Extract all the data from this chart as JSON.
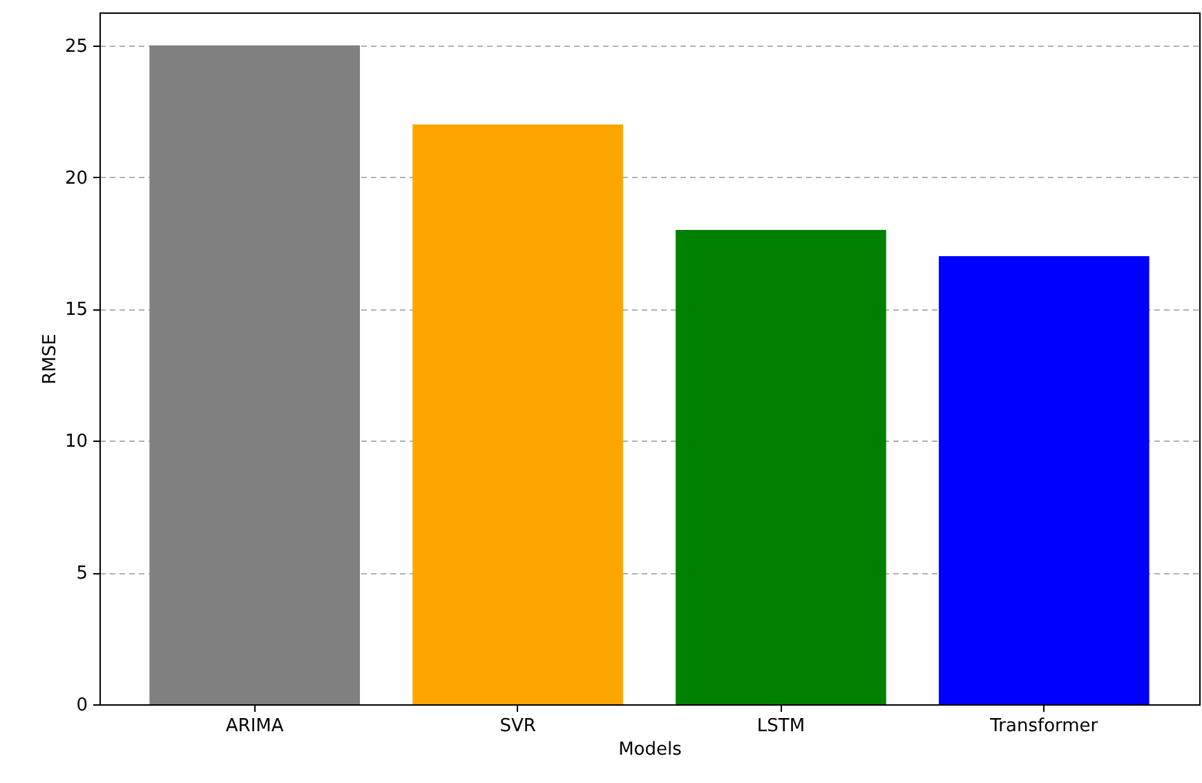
{
  "chart_data": {
    "type": "bar",
    "xlabel": "Models",
    "ylabel": "RMSE",
    "categories": [
      "ARIMA",
      "SVR",
      "LSTM",
      "Transformer"
    ],
    "values": [
      25,
      22,
      18,
      17
    ],
    "colors": [
      "#808080",
      "#ffa500",
      "#008000",
      "#0000ff"
    ],
    "ylim": [
      0,
      26.25
    ],
    "yticks": [
      0,
      5,
      10,
      15,
      20,
      25
    ],
    "grid": "y"
  }
}
